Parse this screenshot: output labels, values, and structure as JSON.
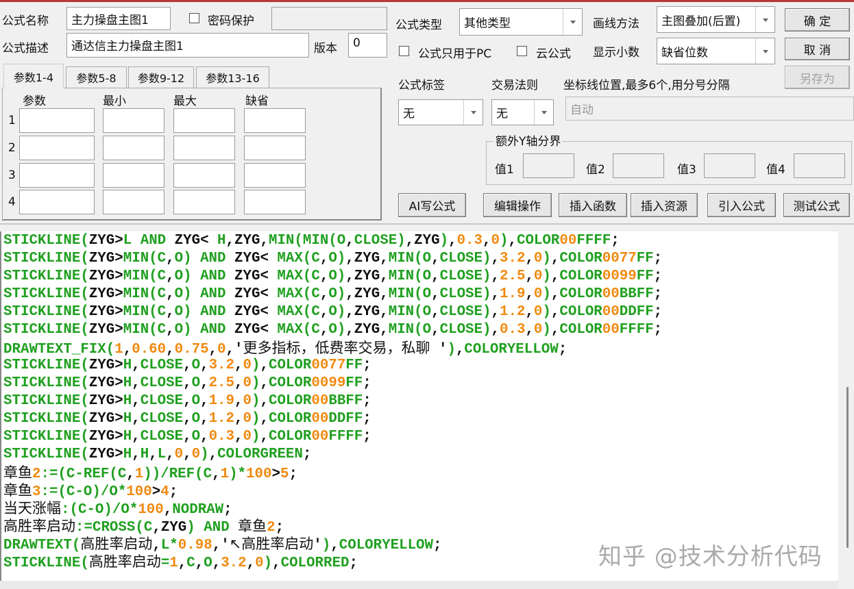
{
  "header": {
    "name_label": "公式名称",
    "name_value": "主力操盘主图1",
    "password_label": "密码保护",
    "password_checked": false,
    "password_value": "",
    "desc_label": "公式描述",
    "desc_value": "通达信主力操盘主图1",
    "version_label": "版本",
    "version_value": "0"
  },
  "params": {
    "tabs": [
      {
        "label": "参数1-4",
        "active": true
      },
      {
        "label": "参数5-8"
      },
      {
        "label": "参数9-12"
      },
      {
        "label": "参数13-16"
      }
    ],
    "columns": [
      "参数",
      "最小",
      "最大",
      "缺省"
    ],
    "rows": [
      "1",
      "2",
      "3",
      "4"
    ]
  },
  "right": {
    "type_label": "公式类型",
    "type_value": "其他类型",
    "draw_label": "画线方法",
    "draw_value": "主图叠加(后置)",
    "ok_label": "确  定",
    "cancel_label": "取  消",
    "saveas_label": "另存为",
    "pc_only_label": "公式只用于PC",
    "cloud_label": "云公式",
    "decimals_label": "显示小数",
    "decimals_value": "缺省位数",
    "tag_label": "公式标签",
    "tag_value": "无",
    "rule_label": "交易法则",
    "rule_value": "无",
    "axis_label": "坐标线位置,最多6个,用分号分隔",
    "axis_placeholder": "自动",
    "yaxis_group": "额外Y轴分界",
    "yvalues": [
      "值1",
      "值2",
      "值3",
      "值4"
    ],
    "buttons": [
      "AI写公式",
      "编辑操作",
      "插入函数",
      "插入资源",
      "引入公式",
      "测试公式"
    ]
  },
  "code_lines": [
    "STICKLINE(ZYG>L AND ZYG< H,ZYG,MIN(MIN(O,CLOSE),ZYG),0.3,0),COLOR00FFFF;",
    "STICKLINE(ZYG>MIN(C,O) AND ZYG< MAX(C,O),ZYG,MIN(O,CLOSE),3.2,0),COLOR0077FF;",
    "STICKLINE(ZYG>MIN(C,O) AND ZYG< MAX(C,O),ZYG,MIN(O,CLOSE),2.5,0),COLOR0099FF;",
    "STICKLINE(ZYG>MIN(C,O) AND ZYG< MAX(C,O),ZYG,MIN(O,CLOSE),1.9,0),COLOR00BBFF;",
    "STICKLINE(ZYG>MIN(C,O) AND ZYG< MAX(C,O),ZYG,MIN(O,CLOSE),1.2,0),COLOR00DDFF;",
    "STICKLINE(ZYG>MIN(C,O) AND ZYG< MAX(C,O),ZYG,MIN(O,CLOSE),0.3,0),COLOR00FFFF;",
    "DRAWTEXT_FIX(1,0.60,0.75,0,'更多指标，低费率交易，私聊 '),COLORYELLOW;",
    "STICKLINE(ZYG>H,CLOSE,O,3.2,0),COLOR0077FF;",
    "STICKLINE(ZYG>H,CLOSE,O,2.5,0),COLOR0099FF;",
    "STICKLINE(ZYG>H,CLOSE,O,1.9,0),COLOR00BBFF;",
    "STICKLINE(ZYG>H,CLOSE,O,1.2,0),COLOR00DDFF;",
    "STICKLINE(ZYG>H,CLOSE,O,0.3,0),COLOR00FFFF;",
    "STICKLINE(ZYG>H,H,L,0,0),COLORGREEN;",
    "章鱼2:=(C-REF(C,1))/REF(C,1)*100>5;",
    "章鱼3:=(C-O)/O*100>4;",
    "当天涨幅:(C-O)/O*100,NODRAW;",
    "高胜率启动:=CROSS(C,ZYG) AND 章鱼2;",
    "DRAWTEXT(高胜率启动,L*0.98,'↖高胜率启动'),COLORYELLOW;",
    "STICKLINE(高胜率启动=1,C,O,3.2,0),COLORRED;"
  ],
  "watermark": "知乎 @技术分析代码",
  "colors": {
    "keyword": "#20a020",
    "number": "#f08a10",
    "text": "#111111",
    "title_bar": "#b33a3a"
  }
}
